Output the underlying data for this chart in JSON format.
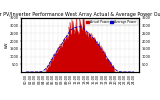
{
  "title": "Solar PV/Inverter Performance West Array Actual & Average Power Output",
  "title_fontsize": 3.5,
  "bg_color": "#ffffff",
  "plot_bg_color": "#ffffff",
  "grid_color": "#bbbbbb",
  "fill_color": "#cc0000",
  "line_color": "#cc0000",
  "avg_line_color": "#0000cc",
  "legend_labels": [
    "Actual Power",
    "Average Power"
  ],
  "legend_colors": [
    "#cc0000",
    "#0000cc"
  ],
  "ylabel": "kW",
  "ylabel_fontsize": 3.0,
  "tick_fontsize": 2.5,
  "ylim": [
    0,
    3500
  ],
  "yticks": [
    500,
    1000,
    1500,
    2000,
    2500,
    3000,
    3500
  ],
  "num_points": 300
}
